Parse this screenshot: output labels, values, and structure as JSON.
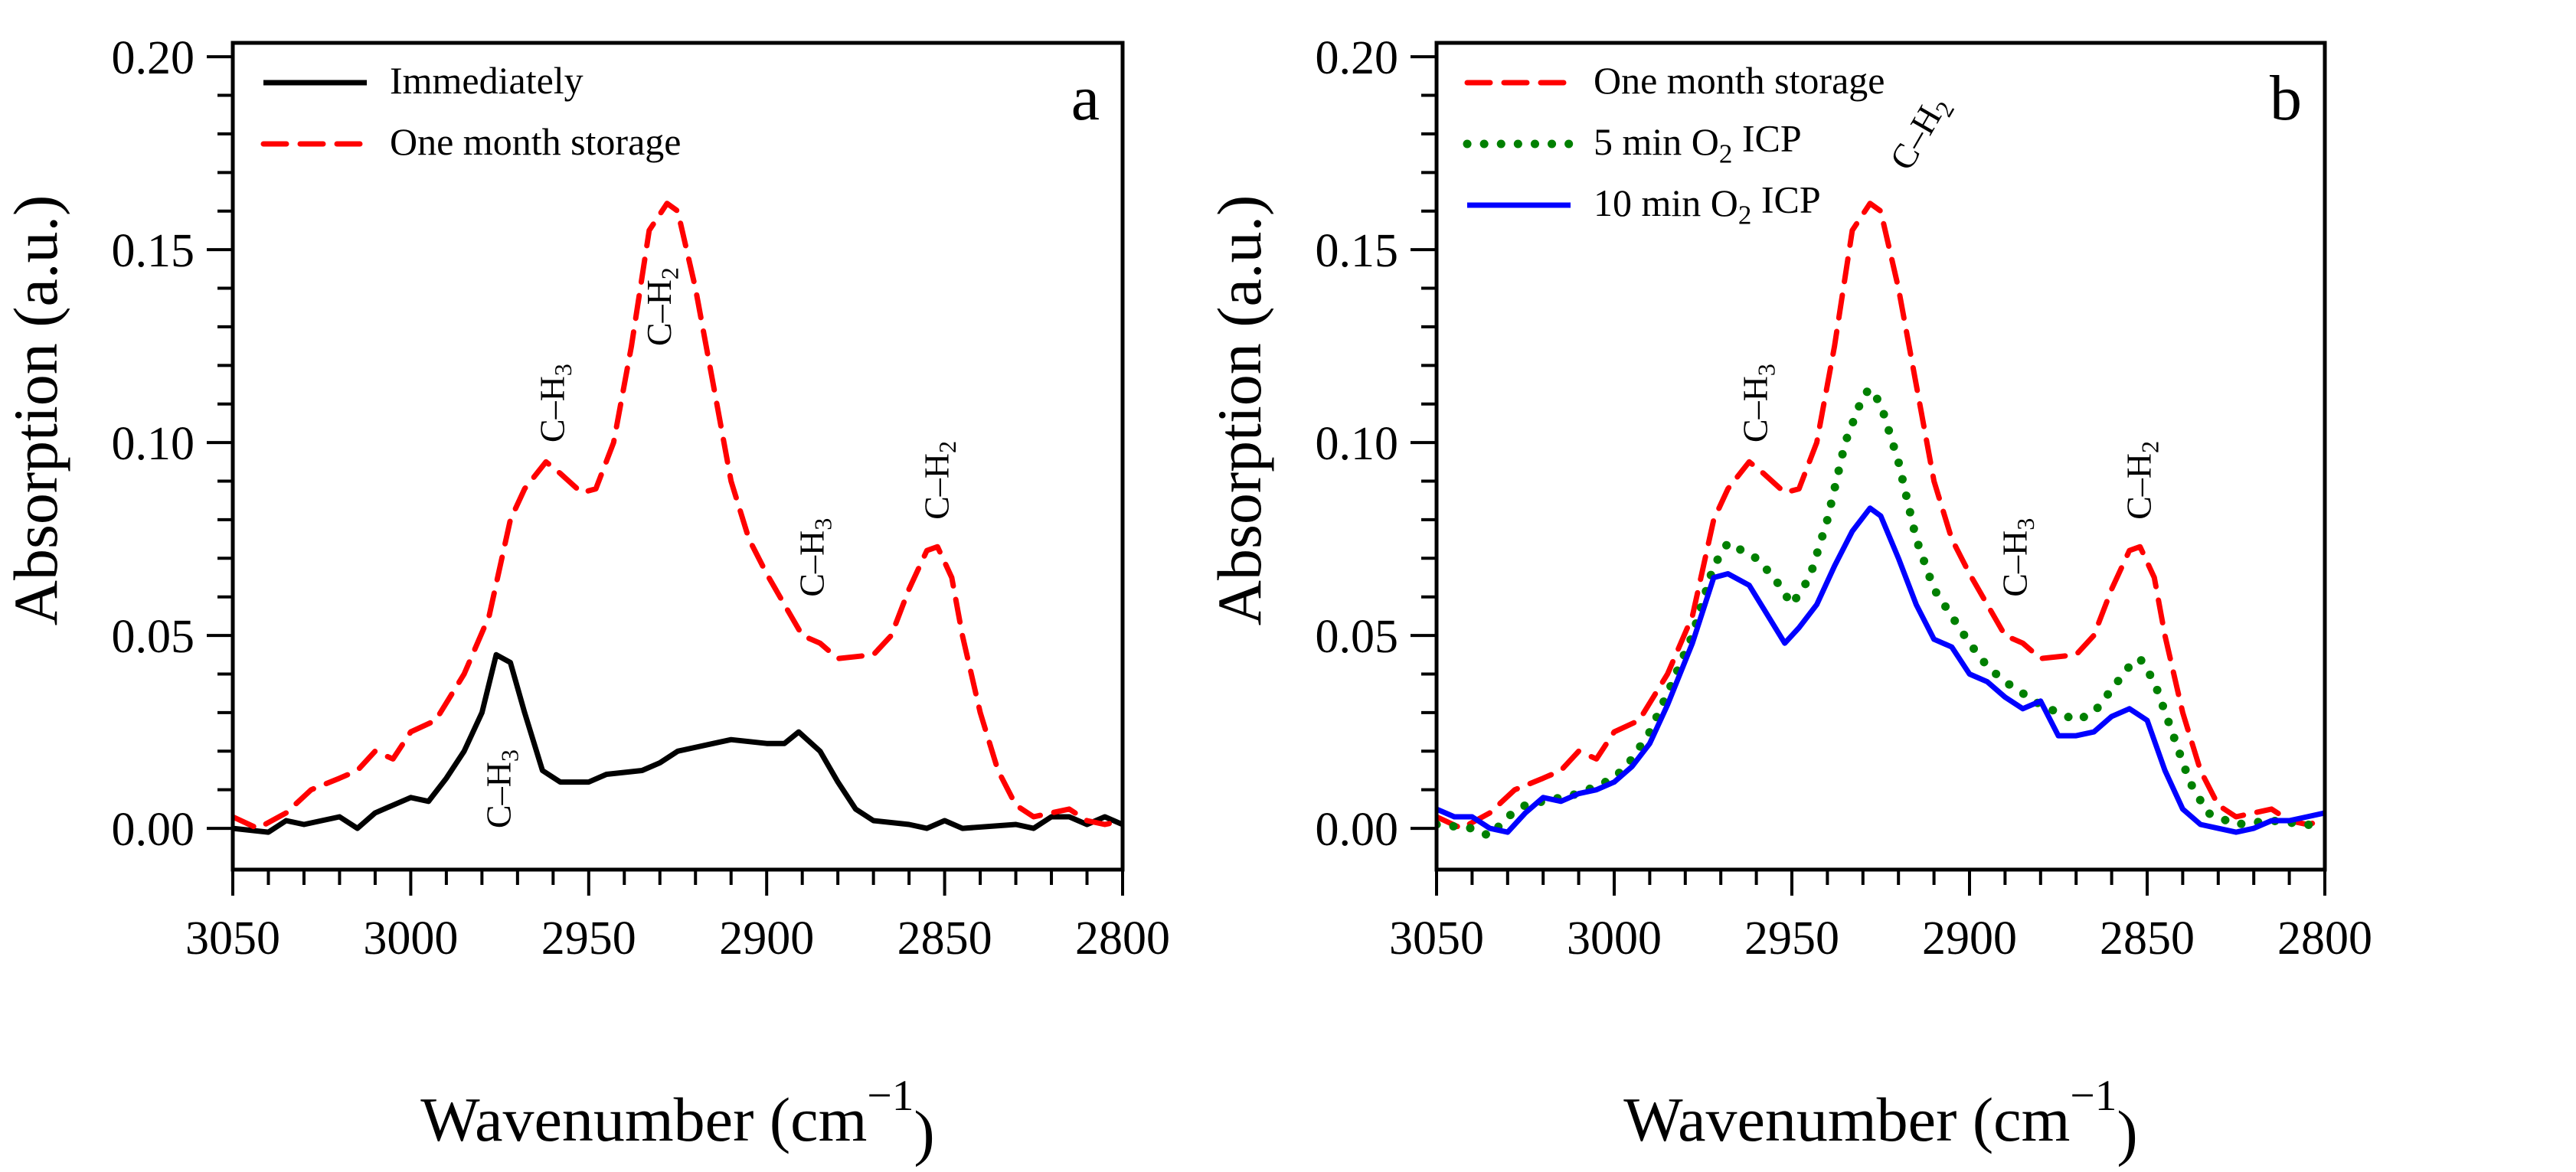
{
  "chart_data": [
    {
      "panel_label": "a",
      "type": "line",
      "xlabel": {
        "text": "Wavenumber (cm",
        "sup": "−1",
        "post": ")"
      },
      "ylabel": "Absorption (a.u.)",
      "xlim": [
        3050,
        2800
      ],
      "ylim": [
        -0.0107,
        0.2036
      ],
      "x_ticks": [
        "3050",
        "3000",
        "2950",
        "2900",
        "2850",
        "2800"
      ],
      "y_ticks": [
        "0.00",
        "0.05",
        "0.10",
        "0.15",
        "0.20"
      ],
      "legend_position": "top-left",
      "series": [
        {
          "name": "Immediately",
          "color": "#000000",
          "style": "solid",
          "x": [
            3050,
            3040,
            3035,
            3030,
            3020,
            3015,
            3010,
            3005,
            3000,
            2995,
            2990,
            2985,
            2980,
            2976,
            2972,
            2968,
            2963,
            2958,
            2950,
            2945,
            2935,
            2930,
            2925,
            2915,
            2910,
            2900,
            2895,
            2891,
            2885,
            2880,
            2875,
            2870,
            2860,
            2855,
            2850,
            2845,
            2830,
            2825,
            2820,
            2815,
            2810,
            2805,
            2800
          ],
          "y": [
            0.0,
            -0.001,
            0.002,
            0.001,
            0.003,
            0.0,
            0.004,
            0.006,
            0.008,
            0.007,
            0.013,
            0.02,
            0.03,
            0.045,
            0.043,
            0.03,
            0.015,
            0.012,
            0.012,
            0.014,
            0.015,
            0.017,
            0.02,
            0.022,
            0.023,
            0.022,
            0.022,
            0.025,
            0.02,
            0.012,
            0.005,
            0.002,
            0.001,
            0.0,
            0.002,
            0.0,
            0.001,
            0.0,
            0.003,
            0.003,
            0.001,
            0.003,
            0.001
          ]
        },
        {
          "name": "One month storage",
          "color": "#ff0000",
          "style": "dashed",
          "x": [
            3050,
            3043,
            3035,
            3028,
            3020,
            3015,
            3010,
            3005,
            3000,
            2993,
            2985,
            2978,
            2972,
            2968,
            2962,
            2958,
            2952,
            2948,
            2943,
            2938,
            2933,
            2928,
            2925,
            2920,
            2915,
            2910,
            2905,
            2900,
            2895,
            2890,
            2885,
            2880,
            2870,
            2865,
            2860,
            2855,
            2852,
            2848,
            2845,
            2840,
            2835,
            2830,
            2825,
            2820,
            2815,
            2810,
            2805,
            2800
          ],
          "y": [
            0.003,
            0.0,
            0.004,
            0.01,
            0.013,
            0.015,
            0.02,
            0.018,
            0.025,
            0.028,
            0.04,
            0.055,
            0.08,
            0.088,
            0.095,
            0.092,
            0.087,
            0.088,
            0.1,
            0.125,
            0.155,
            0.162,
            0.16,
            0.14,
            0.115,
            0.09,
            0.075,
            0.066,
            0.058,
            0.05,
            0.048,
            0.044,
            0.045,
            0.05,
            0.062,
            0.072,
            0.073,
            0.065,
            0.05,
            0.03,
            0.015,
            0.006,
            0.003,
            0.004,
            0.005,
            0.002,
            0.001,
            0.002
          ]
        }
      ],
      "annotations": [
        {
          "text": "C–H",
          "sub": "3",
          "x": 2975,
          "y": 0.0,
          "rotate": -90
        },
        {
          "text": "C–H",
          "sub": "3",
          "x": 2960,
          "y": 0.1,
          "rotate": -90
        },
        {
          "text": "C–H",
          "sub": "2",
          "x": 2930,
          "y": 0.125,
          "rotate": -90
        },
        {
          "text": "C–H",
          "sub": "3",
          "x": 2887,
          "y": 0.06,
          "rotate": -90
        },
        {
          "text": "C–H",
          "sub": "2",
          "x": 2852,
          "y": 0.08,
          "rotate": -90
        }
      ]
    },
    {
      "panel_label": "b",
      "type": "line",
      "xlabel": {
        "text": "Wavenumber (cm",
        "sup": "−1",
        "post": ")"
      },
      "ylabel": "Absorption (a.u.)",
      "xlim": [
        3050,
        2800
      ],
      "ylim": [
        -0.0107,
        0.2036
      ],
      "x_ticks": [
        "3050",
        "3000",
        "2950",
        "2900",
        "2850",
        "2800"
      ],
      "y_ticks": [
        "0.00",
        "0.05",
        "0.10",
        "0.15",
        "0.20"
      ],
      "legend_position": "top-left",
      "series": [
        {
          "name": "One month storage",
          "color": "#ff0000",
          "style": "dashed",
          "x": [
            3050,
            3043,
            3035,
            3028,
            3020,
            3015,
            3010,
            3005,
            3000,
            2993,
            2985,
            2978,
            2972,
            2968,
            2962,
            2958,
            2952,
            2948,
            2943,
            2938,
            2933,
            2928,
            2925,
            2920,
            2915,
            2910,
            2905,
            2900,
            2895,
            2890,
            2885,
            2880,
            2870,
            2865,
            2860,
            2855,
            2852,
            2848,
            2845,
            2840,
            2835,
            2830,
            2825,
            2820,
            2815,
            2810,
            2805,
            2800
          ],
          "y": [
            0.003,
            0.0,
            0.004,
            0.01,
            0.013,
            0.015,
            0.02,
            0.018,
            0.025,
            0.028,
            0.04,
            0.055,
            0.08,
            0.088,
            0.095,
            0.092,
            0.087,
            0.088,
            0.1,
            0.125,
            0.155,
            0.162,
            0.16,
            0.14,
            0.115,
            0.09,
            0.075,
            0.066,
            0.058,
            0.05,
            0.048,
            0.044,
            0.045,
            0.05,
            0.062,
            0.072,
            0.073,
            0.065,
            0.05,
            0.03,
            0.015,
            0.006,
            0.003,
            0.004,
            0.005,
            0.002,
            0.001,
            0.002
          ]
        },
        {
          "name": {
            "text": "5 min O",
            "sub": "2",
            "post": " ICP"
          },
          "color": "#008000",
          "style": "dotted",
          "x": [
            3050,
            3040,
            3035,
            3030,
            3025,
            3015,
            3010,
            3005,
            3000,
            2995,
            2990,
            2985,
            2978,
            2972,
            2968,
            2960,
            2955,
            2950,
            2945,
            2940,
            2935,
            2930,
            2928,
            2925,
            2920,
            2915,
            2910,
            2905,
            2900,
            2895,
            2890,
            2885,
            2880,
            2875,
            2870,
            2865,
            2860,
            2855,
            2852,
            2848,
            2843,
            2838,
            2833,
            2825,
            2815,
            2805,
            2800
          ],
          "y": [
            0.001,
            0.0,
            -0.002,
            0.003,
            0.006,
            0.008,
            0.009,
            0.011,
            0.013,
            0.018,
            0.025,
            0.035,
            0.05,
            0.068,
            0.074,
            0.07,
            0.065,
            0.058,
            0.065,
            0.08,
            0.1,
            0.112,
            0.114,
            0.11,
            0.095,
            0.075,
            0.062,
            0.055,
            0.048,
            0.042,
            0.038,
            0.035,
            0.032,
            0.03,
            0.028,
            0.03,
            0.036,
            0.042,
            0.044,
            0.038,
            0.025,
            0.012,
            0.004,
            0.001,
            0.002,
            0.001,
            0.0
          ]
        },
        {
          "name": {
            "text": "10 min O",
            "sub": "2",
            "post": " ICP"
          },
          "color": "#0000ff",
          "style": "solid",
          "x": [
            3050,
            3045,
            3040,
            3035,
            3030,
            3025,
            3020,
            3015,
            3010,
            3005,
            3000,
            2995,
            2990,
            2985,
            2978,
            2972,
            2968,
            2962,
            2958,
            2952,
            2948,
            2943,
            2938,
            2933,
            2928,
            2925,
            2920,
            2915,
            2910,
            2905,
            2900,
            2895,
            2890,
            2885,
            2880,
            2875,
            2870,
            2865,
            2860,
            2855,
            2850,
            2845,
            2840,
            2835,
            2830,
            2825,
            2820,
            2815,
            2810,
            2805,
            2800
          ],
          "y": [
            0.005,
            0.003,
            0.003,
            0.0,
            -0.001,
            0.004,
            0.008,
            0.007,
            0.009,
            0.01,
            0.012,
            0.016,
            0.022,
            0.032,
            0.048,
            0.065,
            0.066,
            0.063,
            0.057,
            0.048,
            0.052,
            0.058,
            0.068,
            0.077,
            0.083,
            0.081,
            0.07,
            0.058,
            0.049,
            0.047,
            0.04,
            0.038,
            0.034,
            0.031,
            0.033,
            0.024,
            0.024,
            0.025,
            0.029,
            0.031,
            0.028,
            0.015,
            0.005,
            0.001,
            0.0,
            -0.001,
            0.0,
            0.002,
            0.002,
            0.003,
            0.004
          ]
        }
      ],
      "annotations": [
        {
          "text": "C–H",
          "sub": "3",
          "x": 2960,
          "y": 0.1,
          "rotate": -90
        },
        {
          "text": "C–H",
          "sub": "2",
          "x": 2920,
          "y": 0.17,
          "rotate": -60
        },
        {
          "text": "C–H",
          "sub": "3",
          "x": 2887,
          "y": 0.06,
          "rotate": -90
        },
        {
          "text": "C–H",
          "sub": "2",
          "x": 2852,
          "y": 0.08,
          "rotate": -90
        }
      ]
    }
  ]
}
